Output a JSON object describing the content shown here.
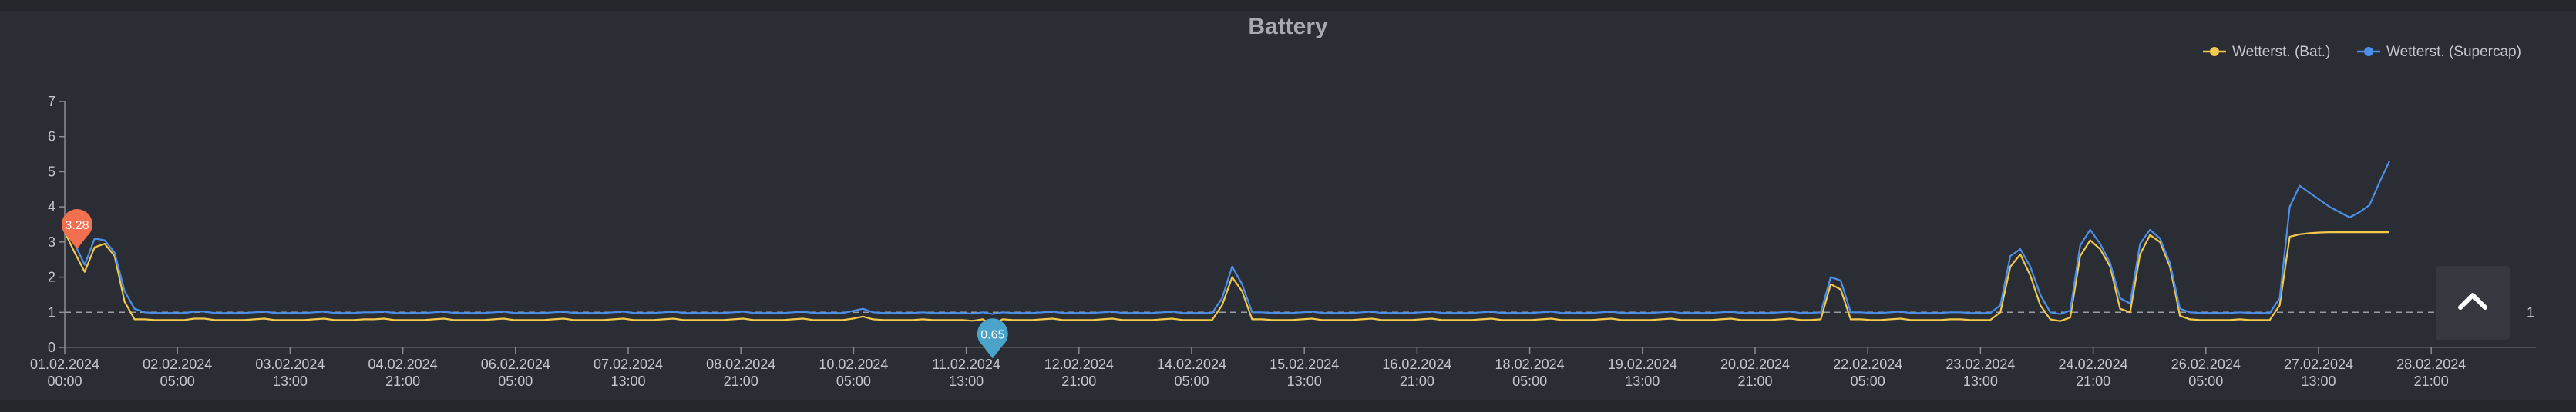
{
  "chart_data": {
    "type": "line",
    "title": "Battery",
    "legend_placement": "top-right",
    "x_ticks": [
      [
        "01.02.2024",
        "00:00"
      ],
      [
        "02.02.2024",
        "05:00"
      ],
      [
        "03.02.2024",
        "13:00"
      ],
      [
        "04.02.2024",
        "21:00"
      ],
      [
        "06.02.2024",
        "05:00"
      ],
      [
        "07.02.2024",
        "13:00"
      ],
      [
        "08.02.2024",
        "21:00"
      ],
      [
        "10.02.2024",
        "05:00"
      ],
      [
        "11.02.2024",
        "13:00"
      ],
      [
        "12.02.2024",
        "21:00"
      ],
      [
        "14.02.2024",
        "05:00"
      ],
      [
        "15.02.2024",
        "13:00"
      ],
      [
        "16.02.2024",
        "21:00"
      ],
      [
        "18.02.2024",
        "05:00"
      ],
      [
        "19.02.2024",
        "13:00"
      ],
      [
        "20.02.2024",
        "21:00"
      ],
      [
        "22.02.2024",
        "05:00"
      ],
      [
        "23.02.2024",
        "13:00"
      ],
      [
        "24.02.2024",
        "21:00"
      ],
      [
        "26.02.2024",
        "05:00"
      ],
      [
        "27.02.2024",
        "13:00"
      ],
      [
        "28.02.2024",
        "21:00"
      ]
    ],
    "y_ticks": [
      "0",
      "1",
      "2",
      "3",
      "4",
      "5",
      "6",
      "7"
    ],
    "ylim": [
      0,
      7
    ],
    "reference_line": {
      "value": 1,
      "label": "1"
    },
    "markers": {
      "max": {
        "label": "3.28",
        "color": "#f26f4f"
      },
      "min": {
        "label": "0.65",
        "color": "#4aa4c9"
      }
    },
    "series": [
      {
        "name": "Wetterst. (Bat.)",
        "color": "#f2c94c",
        "values": [
          3.28,
          2.7,
          2.15,
          2.85,
          2.95,
          2.6,
          1.3,
          0.8,
          0.8,
          0.78,
          0.78,
          0.78,
          0.78,
          0.82,
          0.82,
          0.78,
          0.78,
          0.78,
          0.78,
          0.8,
          0.82,
          0.78,
          0.78,
          0.78,
          0.78,
          0.8,
          0.82,
          0.78,
          0.78,
          0.78,
          0.8,
          0.8,
          0.82,
          0.78,
          0.78,
          0.78,
          0.78,
          0.8,
          0.82,
          0.78,
          0.78,
          0.78,
          0.78,
          0.8,
          0.82,
          0.78,
          0.78,
          0.78,
          0.78,
          0.8,
          0.82,
          0.78,
          0.78,
          0.78,
          0.78,
          0.8,
          0.82,
          0.78,
          0.78,
          0.78,
          0.8,
          0.82,
          0.78,
          0.78,
          0.78,
          0.78,
          0.78,
          0.8,
          0.82,
          0.78,
          0.78,
          0.78,
          0.78,
          0.8,
          0.82,
          0.78,
          0.78,
          0.78,
          0.78,
          0.82,
          0.88,
          0.8,
          0.78,
          0.78,
          0.78,
          0.78,
          0.8,
          0.78,
          0.78,
          0.78,
          0.78,
          0.76,
          0.8,
          0.65,
          0.8,
          0.78,
          0.78,
          0.78,
          0.8,
          0.82,
          0.78,
          0.78,
          0.78,
          0.78,
          0.8,
          0.82,
          0.78,
          0.78,
          0.78,
          0.78,
          0.8,
          0.82,
          0.78,
          0.78,
          0.78,
          0.78,
          1.2,
          2.0,
          1.6,
          0.8,
          0.8,
          0.78,
          0.78,
          0.78,
          0.8,
          0.82,
          0.78,
          0.78,
          0.78,
          0.78,
          0.8,
          0.82,
          0.78,
          0.78,
          0.78,
          0.78,
          0.8,
          0.82,
          0.78,
          0.78,
          0.78,
          0.78,
          0.8,
          0.82,
          0.78,
          0.78,
          0.78,
          0.78,
          0.8,
          0.82,
          0.78,
          0.78,
          0.78,
          0.78,
          0.8,
          0.82,
          0.78,
          0.78,
          0.78,
          0.78,
          0.8,
          0.82,
          0.78,
          0.78,
          0.78,
          0.78,
          0.8,
          0.82,
          0.78,
          0.78,
          0.78,
          0.78,
          0.8,
          0.82,
          0.78,
          0.78,
          0.8,
          1.8,
          1.65,
          0.8,
          0.8,
          0.78,
          0.78,
          0.8,
          0.82,
          0.78,
          0.78,
          0.78,
          0.78,
          0.8,
          0.8,
          0.78,
          0.78,
          0.78,
          1.0,
          2.3,
          2.65,
          2.05,
          1.2,
          0.8,
          0.75,
          0.85,
          2.6,
          3.05,
          2.8,
          2.3,
          1.1,
          1.0,
          2.65,
          3.2,
          3.0,
          2.3,
          0.9,
          0.8,
          0.78,
          0.78,
          0.78,
          0.78,
          0.8,
          0.78,
          0.78,
          0.78,
          1.2,
          3.15,
          3.22,
          3.25,
          3.27,
          3.28,
          3.28,
          3.28,
          3.28,
          3.28,
          3.28,
          3.28
        ]
      },
      {
        "name": "Wetterst. (Supercap)",
        "color": "#4c8fe8",
        "values": [
          3.28,
          2.95,
          2.35,
          3.1,
          3.05,
          2.7,
          1.6,
          1.1,
          1.0,
          0.98,
          0.98,
          0.98,
          0.98,
          1.02,
          1.02,
          0.98,
          0.98,
          0.98,
          0.98,
          1.0,
          1.02,
          0.98,
          0.98,
          0.98,
          0.98,
          1.0,
          1.02,
          0.98,
          0.98,
          0.98,
          1.0,
          1.0,
          1.02,
          0.98,
          0.98,
          0.98,
          0.98,
          1.0,
          1.02,
          0.98,
          0.98,
          0.98,
          0.98,
          1.0,
          1.02,
          0.98,
          0.98,
          0.98,
          0.98,
          1.0,
          1.02,
          0.98,
          0.98,
          0.98,
          0.98,
          1.0,
          1.02,
          0.98,
          0.98,
          0.98,
          1.0,
          1.02,
          0.98,
          0.98,
          0.98,
          0.98,
          0.98,
          1.0,
          1.02,
          0.98,
          0.98,
          0.98,
          0.98,
          1.0,
          1.02,
          0.98,
          0.98,
          0.98,
          0.98,
          1.04,
          1.1,
          1.0,
          0.98,
          0.98,
          0.98,
          0.98,
          1.0,
          0.98,
          0.98,
          0.98,
          0.98,
          0.96,
          1.0,
          0.95,
          1.0,
          0.98,
          0.98,
          0.98,
          1.0,
          1.02,
          0.98,
          0.98,
          0.98,
          0.98,
          1.0,
          1.02,
          0.98,
          0.98,
          0.98,
          0.98,
          1.0,
          1.02,
          0.98,
          0.98,
          0.98,
          0.98,
          1.4,
          2.3,
          1.8,
          1.0,
          1.0,
          0.98,
          0.98,
          0.98,
          1.0,
          1.02,
          0.98,
          0.98,
          0.98,
          0.98,
          1.0,
          1.02,
          0.98,
          0.98,
          0.98,
          0.98,
          1.0,
          1.02,
          0.98,
          0.98,
          0.98,
          0.98,
          1.0,
          1.02,
          0.98,
          0.98,
          0.98,
          0.98,
          1.0,
          1.02,
          0.98,
          0.98,
          0.98,
          0.98,
          1.0,
          1.02,
          0.98,
          0.98,
          0.98,
          0.98,
          1.0,
          1.02,
          0.98,
          0.98,
          0.98,
          0.98,
          1.0,
          1.02,
          0.98,
          0.98,
          0.98,
          0.98,
          1.0,
          1.02,
          0.98,
          0.98,
          1.0,
          2.0,
          1.9,
          1.0,
          1.0,
          0.98,
          0.98,
          1.0,
          1.02,
          0.98,
          0.98,
          0.98,
          0.98,
          1.0,
          1.0,
          0.98,
          0.98,
          0.98,
          1.2,
          2.6,
          2.8,
          2.3,
          1.5,
          1.0,
          0.95,
          1.05,
          2.9,
          3.35,
          2.95,
          2.4,
          1.4,
          1.25,
          2.95,
          3.35,
          3.1,
          2.4,
          1.1,
          1.0,
          0.98,
          0.98,
          0.98,
          0.98,
          1.0,
          0.98,
          0.98,
          0.98,
          1.4,
          4.0,
          4.6,
          4.4,
          4.2,
          4.0,
          3.85,
          3.7,
          3.85,
          4.05,
          4.7,
          5.3
        ]
      }
    ]
  }
}
